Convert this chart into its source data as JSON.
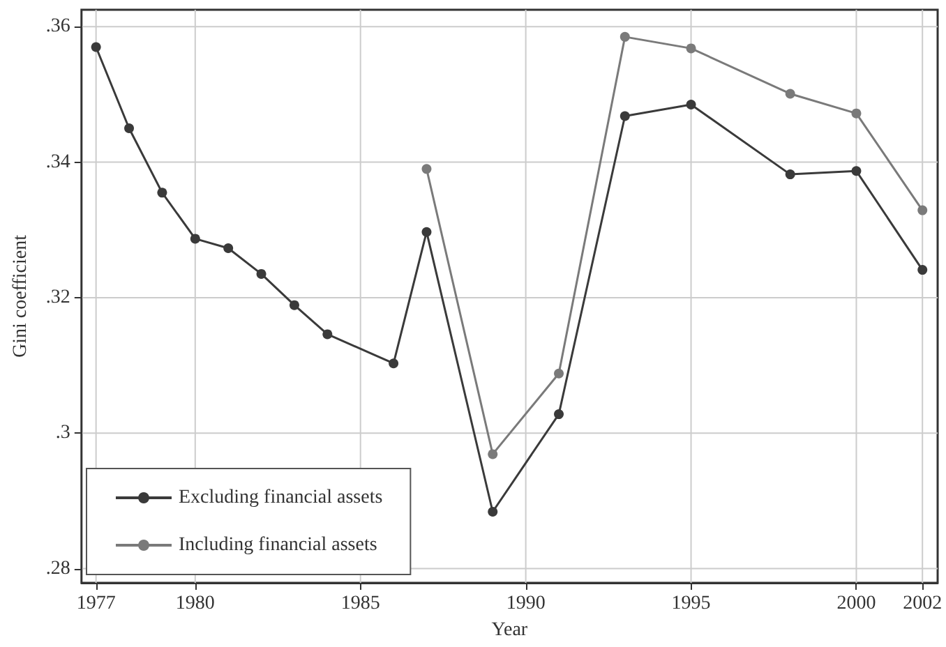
{
  "chart_data": {
    "type": "line",
    "xlabel": "Year",
    "ylabel": "Gini coefficient",
    "xlim": [
      1976.56,
      2002.46
    ],
    "xticks": [
      1977,
      1980,
      1985,
      1990,
      1995,
      2000,
      2002
    ],
    "ylim": [
      0.2779,
      0.3625
    ],
    "yticks": [
      {
        "value": 0.28,
        "label": ".28"
      },
      {
        "value": 0.3,
        "label": ".3"
      },
      {
        "value": 0.32,
        "label": ".32"
      },
      {
        "value": 0.34,
        "label": ".34"
      },
      {
        "value": 0.36,
        "label": ".36"
      }
    ],
    "grid": true,
    "legend": "bottom left",
    "marker": "circle",
    "line_style": "solid",
    "series": [
      {
        "name": "Excluding financial assets",
        "color": "#3a3a3a",
        "x": [
          1977,
          1978,
          1979,
          1980,
          1981,
          1982,
          1983,
          1984,
          1986,
          1987,
          1989,
          1991,
          1993,
          1995,
          1998,
          2000,
          2002
        ],
        "values": [
          0.357,
          0.345,
          0.3355,
          0.3287,
          0.3273,
          0.3235,
          0.3189,
          0.3146,
          0.3103,
          0.3297,
          0.2884,
          0.3028,
          0.3468,
          0.3485,
          0.3382,
          0.3387,
          0.3241
        ]
      },
      {
        "name": "Including financial assets",
        "color": "#7a7a7a",
        "x": [
          1987,
          1989,
          1991,
          1993,
          1995,
          1998,
          2000,
          2002
        ],
        "values": [
          0.339,
          0.2969,
          0.3088,
          0.3585,
          0.3568,
          0.3501,
          0.3472,
          0.3329
        ]
      }
    ]
  }
}
